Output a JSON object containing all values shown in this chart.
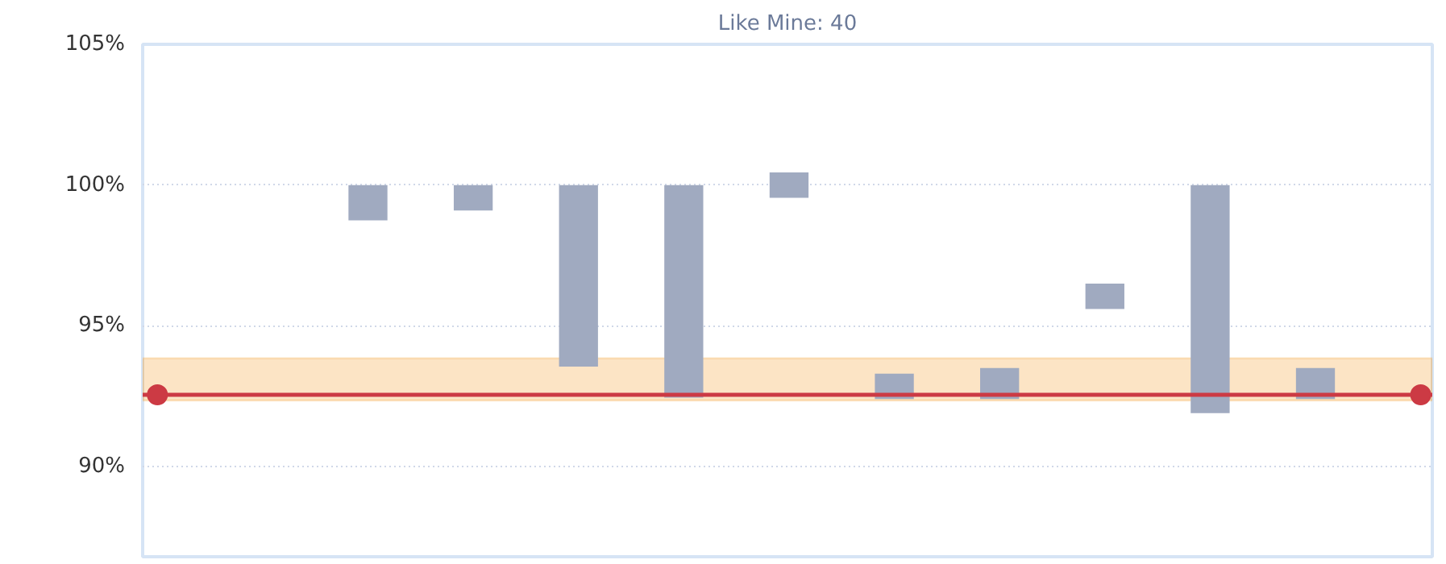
{
  "chart_data": {
    "type": "bar",
    "title": "Like Mine: 40",
    "categories": [
      null,
      null,
      null,
      null,
      null,
      null,
      null,
      null,
      null,
      null,
      null,
      null,
      null
    ],
    "base": [
      null,
      null,
      98.75,
      99.1,
      93.55,
      92.45,
      99.55,
      92.4,
      92.4,
      95.6,
      91.9,
      92.4,
      null
    ],
    "values": [
      null,
      null,
      1.25,
      0.9,
      6.45,
      7.55,
      0.9,
      0.9,
      1.1,
      0.9,
      8.1,
      1.1,
      null
    ],
    "color": "#a0aac0",
    "ylim": [
      86.8,
      105
    ],
    "yticks": [
      {
        "value": 90,
        "label": "90%"
      },
      {
        "value": 95,
        "label": "95%"
      },
      {
        "value": 100,
        "label": "100%"
      },
      {
        "value": 105,
        "label": "105%"
      }
    ],
    "tick_labels": "y",
    "grid": "y",
    "ref_lines": [
      {
        "axis": "y",
        "value": 92.55,
        "color": "#cc3a44",
        "line_style": "solid"
      }
    ],
    "series": [
      {
        "type": "scatter",
        "values": [
          92.55,
          null,
          null,
          null,
          null,
          null,
          null,
          null,
          null,
          null,
          null,
          null,
          92.55
        ],
        "color": "#cc3a44",
        "marker": "circle"
      }
    ],
    "bands": [
      {
        "axis": "y",
        "from": 92.35,
        "to": 93.85,
        "color": "#f5a540"
      }
    ]
  }
}
